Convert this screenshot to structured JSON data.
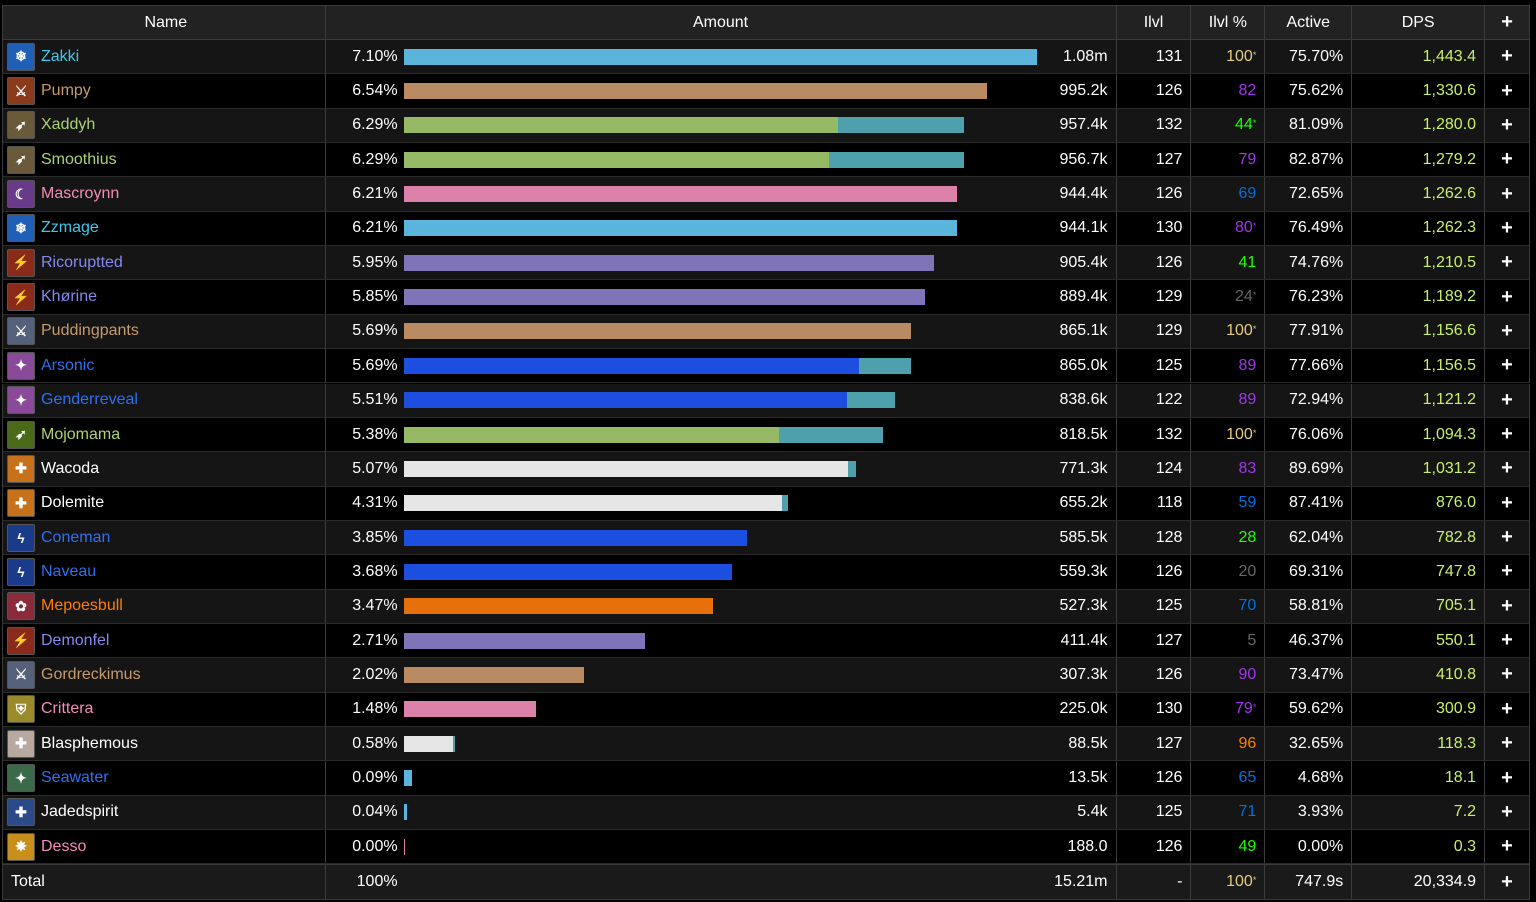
{
  "header": {
    "name": "Name",
    "amount": "Amount",
    "ilvl": "Ilvl",
    "ilvl_pct": "Ilvl %",
    "active": "Active",
    "dps": "DPS",
    "plus": "+"
  },
  "rows": [
    {
      "name": "Zakki",
      "name_color": "#3fc7eb",
      "icon": "frost-mage-icon",
      "icon_color": "#1f5fb8",
      "pct": "7.10%",
      "pct_value": 7.1,
      "bar_color": "#5ab4db",
      "secondary_pct": 0,
      "amount": "1.08m",
      "ilvl": "131",
      "ilvl_pct": "100",
      "ilvl_pct_color": "#e5cc80",
      "star": true,
      "active": "75.70%",
      "dps": "1,443.4"
    },
    {
      "name": "Pumpy",
      "name_color": "#c69b6d",
      "icon": "warrior-icon",
      "icon_color": "#8a3a1a",
      "pct": "6.54%",
      "pct_value": 6.54,
      "bar_color": "#b98b62",
      "secondary_pct": 0,
      "amount": "995.2k",
      "ilvl": "126",
      "ilvl_pct": "82",
      "ilvl_pct_color": "#a335ee",
      "star": false,
      "active": "75.62%",
      "dps": "1,330.6"
    },
    {
      "name": "Xaddyh",
      "name_color": "#aad372",
      "icon": "hunter-icon",
      "icon_color": "#6b5a3a",
      "pct": "6.29%",
      "pct_value": 6.29,
      "bar_color": "#96b966",
      "secondary_pct": 1.42,
      "amount": "957.4k",
      "ilvl": "132",
      "ilvl_pct": "44",
      "ilvl_pct_color": "#1eff00",
      "star": true,
      "active": "81.09%",
      "dps": "1,280.0"
    },
    {
      "name": "Smoothius",
      "name_color": "#aad372",
      "icon": "hunter-icon",
      "icon_color": "#6b5a3a",
      "pct": "6.29%",
      "pct_value": 6.29,
      "bar_color": "#96b966",
      "secondary_pct": 1.52,
      "amount": "956.7k",
      "ilvl": "127",
      "ilvl_pct": "79",
      "ilvl_pct_color": "#a335ee",
      "star": false,
      "active": "82.87%",
      "dps": "1,279.2"
    },
    {
      "name": "Mascroynn",
      "name_color": "#f48cba",
      "icon": "shadow-priest-icon",
      "icon_color": "#6a3a8a",
      "pct": "6.21%",
      "pct_value": 6.21,
      "bar_color": "#dc82aa",
      "secondary_pct": 0,
      "amount": "944.4k",
      "ilvl": "126",
      "ilvl_pct": "69",
      "ilvl_pct_color": "#0070dd",
      "star": false,
      "active": "72.65%",
      "dps": "1,262.6"
    },
    {
      "name": "Zzmage",
      "name_color": "#3fc7eb",
      "icon": "frost-mage-icon",
      "icon_color": "#1f5fb8",
      "pct": "6.21%",
      "pct_value": 6.21,
      "bar_color": "#5ab4db",
      "secondary_pct": 0,
      "amount": "944.1k",
      "ilvl": "130",
      "ilvl_pct": "80",
      "ilvl_pct_color": "#a335ee",
      "star": true,
      "active": "76.49%",
      "dps": "1,262.3"
    },
    {
      "name": "Ricoruptted",
      "name_color": "#8788ee",
      "icon": "warlock-icon",
      "icon_color": "#8a2a1a",
      "pct": "5.95%",
      "pct_value": 5.95,
      "bar_color": "#7f74b8",
      "secondary_pct": 0,
      "amount": "905.4k",
      "ilvl": "126",
      "ilvl_pct": "41",
      "ilvl_pct_color": "#1eff00",
      "star": false,
      "active": "74.76%",
      "dps": "1,210.5"
    },
    {
      "name": "Khørine",
      "name_color": "#8788ee",
      "icon": "warlock-icon",
      "icon_color": "#8a2a1a",
      "pct": "5.85%",
      "pct_value": 5.85,
      "bar_color": "#7f74b8",
      "secondary_pct": 0,
      "amount": "889.4k",
      "ilvl": "129",
      "ilvl_pct": "24",
      "ilvl_pct_color": "#666666",
      "star": true,
      "active": "76.23%",
      "dps": "1,189.2"
    },
    {
      "name": "Puddingpants",
      "name_color": "#c69b6d",
      "icon": "warrior-icon",
      "icon_color": "#55607a",
      "pct": "5.69%",
      "pct_value": 5.69,
      "bar_color": "#b98b62",
      "secondary_pct": 0,
      "amount": "865.1k",
      "ilvl": "129",
      "ilvl_pct": "100",
      "ilvl_pct_color": "#e5cc80",
      "star": true,
      "active": "77.91%",
      "dps": "1,156.6"
    },
    {
      "name": "Arsonic",
      "name_color": "#2f6ff0",
      "icon": "shaman-icon",
      "icon_color": "#8a4a9a",
      "pct": "5.69%",
      "pct_value": 5.69,
      "bar_color": "#1c4ee0",
      "secondary_pct": 0.58,
      "amount": "865.0k",
      "ilvl": "125",
      "ilvl_pct": "89",
      "ilvl_pct_color": "#a335ee",
      "star": false,
      "active": "77.66%",
      "dps": "1,156.5"
    },
    {
      "name": "Genderreveal",
      "name_color": "#2f6ff0",
      "icon": "shaman-icon",
      "icon_color": "#8a4a9a",
      "pct": "5.51%",
      "pct_value": 5.51,
      "bar_color": "#1c4ee0",
      "secondary_pct": 0.54,
      "amount": "838.6k",
      "ilvl": "122",
      "ilvl_pct": "89",
      "ilvl_pct_color": "#a335ee",
      "star": false,
      "active": "72.94%",
      "dps": "1,121.2"
    },
    {
      "name": "Mojomama",
      "name_color": "#aad372",
      "icon": "hunter-icon",
      "icon_color": "#4a6a1a",
      "pct": "5.38%",
      "pct_value": 5.38,
      "bar_color": "#96b966",
      "secondary_pct": 1.17,
      "amount": "818.5k",
      "ilvl": "132",
      "ilvl_pct": "100",
      "ilvl_pct_color": "#e5cc80",
      "star": true,
      "active": "76.06%",
      "dps": "1,094.3"
    },
    {
      "name": "Wacoda",
      "name_color": "#ffffff",
      "icon": "priest-icon",
      "icon_color": "#c8701a",
      "pct": "5.07%",
      "pct_value": 5.07,
      "bar_color": "#e6e6e6",
      "secondary_pct": 0.09,
      "amount": "771.3k",
      "ilvl": "124",
      "ilvl_pct": "83",
      "ilvl_pct_color": "#a335ee",
      "star": false,
      "active": "89.69%",
      "dps": "1,031.2"
    },
    {
      "name": "Dolemite",
      "name_color": "#ffffff",
      "icon": "priest-icon",
      "icon_color": "#c8701a",
      "pct": "4.31%",
      "pct_value": 4.31,
      "bar_color": "#e6e6e6",
      "secondary_pct": 0.06,
      "amount": "655.2k",
      "ilvl": "118",
      "ilvl_pct": "59",
      "ilvl_pct_color": "#0070dd",
      "star": false,
      "active": "87.41%",
      "dps": "876.0"
    },
    {
      "name": "Coneman",
      "name_color": "#2f6ff0",
      "icon": "lightning-icon",
      "icon_color": "#1a3a8a",
      "pct": "3.85%",
      "pct_value": 3.85,
      "bar_color": "#1c4ee0",
      "secondary_pct": 0,
      "amount": "585.5k",
      "ilvl": "128",
      "ilvl_pct": "28",
      "ilvl_pct_color": "#1eff00",
      "star": false,
      "active": "62.04%",
      "dps": "782.8"
    },
    {
      "name": "Naveau",
      "name_color": "#2f6ff0",
      "icon": "lightning-icon",
      "icon_color": "#1a3a8a",
      "pct": "3.68%",
      "pct_value": 3.68,
      "bar_color": "#1c4ee0",
      "secondary_pct": 0,
      "amount": "559.3k",
      "ilvl": "126",
      "ilvl_pct": "20",
      "ilvl_pct_color": "#666666",
      "star": false,
      "active": "69.31%",
      "dps": "747.8"
    },
    {
      "name": "Mepoesbull",
      "name_color": "#ff7c0a",
      "icon": "druid-icon",
      "icon_color": "#8a2a3a",
      "pct": "3.47%",
      "pct_value": 3.47,
      "bar_color": "#e6700a",
      "secondary_pct": 0,
      "amount": "527.3k",
      "ilvl": "125",
      "ilvl_pct": "70",
      "ilvl_pct_color": "#0070dd",
      "star": false,
      "active": "58.81%",
      "dps": "705.1"
    },
    {
      "name": "Demonfel",
      "name_color": "#8788ee",
      "icon": "warlock-icon",
      "icon_color": "#8a2a1a",
      "pct": "2.71%",
      "pct_value": 2.71,
      "bar_color": "#7f74b8",
      "secondary_pct": 0,
      "amount": "411.4k",
      "ilvl": "127",
      "ilvl_pct": "5",
      "ilvl_pct_color": "#666666",
      "star": false,
      "active": "46.37%",
      "dps": "550.1"
    },
    {
      "name": "Gordreckimus",
      "name_color": "#c69b6d",
      "icon": "warrior-icon",
      "icon_color": "#55607a",
      "pct": "2.02%",
      "pct_value": 2.02,
      "bar_color": "#b98b62",
      "secondary_pct": 0,
      "amount": "307.3k",
      "ilvl": "126",
      "ilvl_pct": "90",
      "ilvl_pct_color": "#a335ee",
      "star": false,
      "active": "73.47%",
      "dps": "410.8"
    },
    {
      "name": "Crittera",
      "name_color": "#f48cba",
      "icon": "paladin-icon",
      "icon_color": "#9a8a2a",
      "pct": "1.48%",
      "pct_value": 1.48,
      "bar_color": "#dc82aa",
      "secondary_pct": 0,
      "amount": "225.0k",
      "ilvl": "130",
      "ilvl_pct": "79",
      "ilvl_pct_color": "#a335ee",
      "star": true,
      "active": "59.62%",
      "dps": "300.9"
    },
    {
      "name": "Blasphemous",
      "name_color": "#ffffff",
      "icon": "priest-icon",
      "icon_color": "#b8a8a0",
      "pct": "0.58%",
      "pct_value": 0.58,
      "bar_color": "#e6e6e6",
      "secondary_pct": 0.03,
      "amount": "88.5k",
      "ilvl": "127",
      "ilvl_pct": "96",
      "ilvl_pct_color": "#ff8000",
      "star": false,
      "active": "32.65%",
      "dps": "118.3"
    },
    {
      "name": "Seawater",
      "name_color": "#2f6ff0",
      "icon": "shaman-icon",
      "icon_color": "#3a6a4a",
      "pct": "0.09%",
      "pct_value": 0.09,
      "bar_color": "#5ab4db",
      "secondary_pct": 0,
      "amount": "13.5k",
      "ilvl": "126",
      "ilvl_pct": "65",
      "ilvl_pct_color": "#0070dd",
      "star": false,
      "active": "4.68%",
      "dps": "18.1"
    },
    {
      "name": "Jadedspirit",
      "name_color": "#ffffff",
      "icon": "priest-icon",
      "icon_color": "#2a4a8a",
      "pct": "0.04%",
      "pct_value": 0.04,
      "bar_color": "#5ab4db",
      "secondary_pct": 0,
      "amount": "5.4k",
      "ilvl": "125",
      "ilvl_pct": "71",
      "ilvl_pct_color": "#0070dd",
      "star": false,
      "active": "3.93%",
      "dps": "7.2"
    },
    {
      "name": "Desso",
      "name_color": "#f48cba",
      "icon": "holy-icon",
      "icon_color": "#c8901a",
      "pct": "0.00%",
      "pct_value": 0.005,
      "bar_color": "#dc82aa",
      "secondary_pct": 0,
      "amount": "188.0",
      "ilvl": "126",
      "ilvl_pct": "49",
      "ilvl_pct_color": "#1eff00",
      "star": false,
      "active": "0.00%",
      "dps": "0.3"
    }
  ],
  "secondary_bar_color": "#4fa0ad",
  "total": {
    "label": "Total",
    "pct": "100%",
    "amount": "15.21m",
    "ilvl": "-",
    "ilvl_pct": "100",
    "ilvl_pct_color": "#e5cc80",
    "active": "747.9s",
    "dps": "20,334.9",
    "plus": "+"
  }
}
